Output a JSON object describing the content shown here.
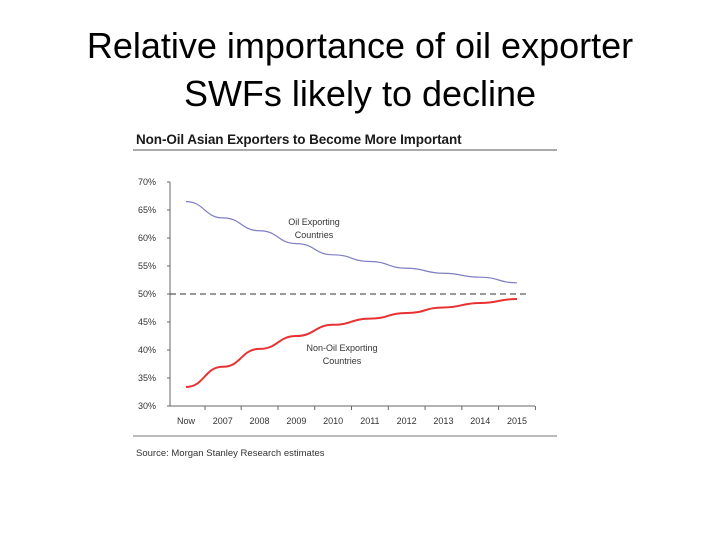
{
  "slide": {
    "title_line1": "Relative importance of oil exporter",
    "title_line2": "SWFs likely to decline"
  },
  "chart_data": {
    "type": "line",
    "title": "Non-Oil Asian Exporters to Become More Important",
    "categories": [
      "Now",
      "2007",
      "2008",
      "2009",
      "2010",
      "2011",
      "2012",
      "2013",
      "2014",
      "2015"
    ],
    "y_ticks": [
      "70%",
      "65%",
      "60%",
      "55%",
      "50%",
      "45%",
      "40%",
      "35%",
      "30%"
    ],
    "ylim": [
      30,
      70
    ],
    "reference_line": 50,
    "series": [
      {
        "name": "Oil Exporting Countries",
        "color": "#7e7ec4",
        "values": [
          66.5,
          63.6,
          61.3,
          59.0,
          57.0,
          55.8,
          54.6,
          53.7,
          53.0,
          52.0
        ],
        "annotation": [
          "Oil Exporting",
          "Countries"
        ]
      },
      {
        "name": "Non-Oil Exporting Countries",
        "color": "#e83232",
        "values": [
          33.4,
          37.0,
          40.2,
          42.5,
          44.5,
          45.6,
          46.6,
          47.6,
          48.4,
          49.1
        ],
        "annotation": [
          "Non-Oil Exporting",
          "Countries"
        ]
      }
    ],
    "source": "Source: Morgan Stanley Research estimates"
  }
}
